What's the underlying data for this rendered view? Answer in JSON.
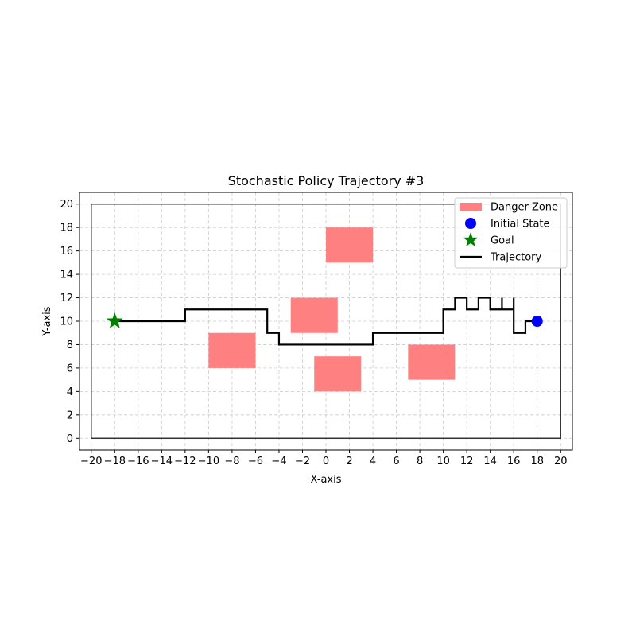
{
  "chart_data": {
    "type": "line",
    "title": "Stochastic Policy Trajectory #3",
    "xlabel": "X-axis",
    "ylabel": "Y-axis",
    "xlim": [
      -21,
      21
    ],
    "ylim": [
      -1,
      21
    ],
    "xticks": [
      -20,
      -18,
      -16,
      -14,
      -12,
      -10,
      -8,
      -6,
      -4,
      -2,
      0,
      2,
      4,
      6,
      8,
      10,
      12,
      14,
      16,
      18,
      20
    ],
    "yticks": [
      0,
      2,
      4,
      6,
      8,
      10,
      12,
      14,
      16,
      18,
      20
    ],
    "grid": true,
    "boundary": {
      "x0": -20,
      "y0": 0,
      "x1": 20,
      "y1": 20
    },
    "danger_zones": [
      {
        "x0": 0,
        "y0": 15,
        "x1": 4,
        "y1": 18
      },
      {
        "x0": -3,
        "y0": 9,
        "x1": 1,
        "y1": 12
      },
      {
        "x0": -10,
        "y0": 6,
        "x1": -6,
        "y1": 9
      },
      {
        "x0": -1,
        "y0": 4,
        "x1": 3,
        "y1": 7
      },
      {
        "x0": 7,
        "y0": 5,
        "x1": 11,
        "y1": 8
      }
    ],
    "initial_state": {
      "x": 18,
      "y": 10
    },
    "goal": {
      "x": -18,
      "y": 10
    },
    "trajectory": [
      [
        18,
        10
      ],
      [
        17,
        10
      ],
      [
        17,
        9
      ],
      [
        16,
        9
      ],
      [
        16,
        12
      ],
      [
        16,
        11
      ],
      [
        15,
        11
      ],
      [
        15,
        12
      ],
      [
        15,
        11
      ],
      [
        14,
        11
      ],
      [
        14,
        12
      ],
      [
        13,
        12
      ],
      [
        13,
        11
      ],
      [
        12,
        11
      ],
      [
        12,
        12
      ],
      [
        11,
        12
      ],
      [
        11,
        11
      ],
      [
        10,
        11
      ],
      [
        10,
        9
      ],
      [
        4,
        9
      ],
      [
        4,
        8
      ],
      [
        -4,
        8
      ],
      [
        -4,
        9
      ],
      [
        -5,
        9
      ],
      [
        -5,
        11
      ],
      [
        -12,
        11
      ],
      [
        -12,
        10
      ],
      [
        -18,
        10
      ]
    ],
    "legend": {
      "position": "top-right",
      "entries": [
        "Danger Zone",
        "Initial State",
        "Goal",
        "Trajectory"
      ]
    },
    "colors": {
      "danger_zone": "#ff8080",
      "initial_state": "#0000ff",
      "goal": "#008000",
      "trajectory": "#000000",
      "grid": "#cccccc",
      "boundary": "#333333"
    }
  }
}
